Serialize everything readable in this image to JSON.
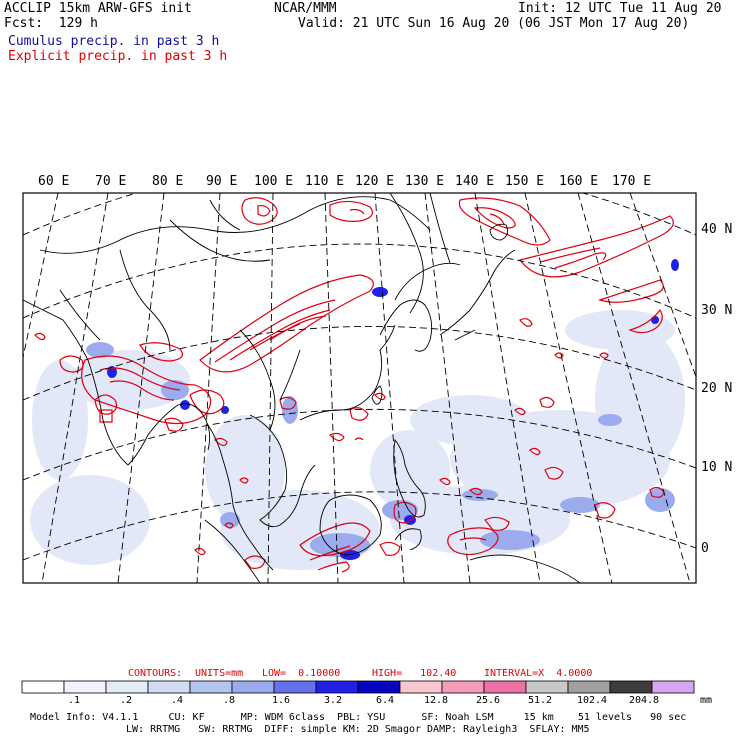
{
  "header": {
    "model": "ACCLIP 15km ARW-GFS init",
    "center": "NCAR/MMM",
    "init": "Init: 12 UTC Tue 11 Aug 20",
    "fcst": "Fcst:  129 h",
    "valid": "Valid: 21 UTC Sun 16 Aug 20 (06 JST Mon 17 Aug 20)",
    "legend_cumulus": "Cumulus precip. in past 3 h",
    "legend_explicit": "Explicit precip. in past 3 h"
  },
  "colors": {
    "cumulus_text": "#1010a0",
    "explicit_text": "#e00000",
    "contour": "#e00010"
  },
  "map": {
    "lon_labels": [
      "60 E",
      "70 E",
      "80 E",
      "90 E",
      "100 E",
      "110 E",
      "120 E",
      "130 E",
      "140 E",
      "150 E",
      "160 E",
      "170 E"
    ],
    "lat_labels": [
      "40 N",
      "30 N",
      "20 N",
      "10 N",
      "0"
    ]
  },
  "contours": {
    "label": "CONTOURS:",
    "units": "UNITS=mm",
    "low": "LOW=  0.10000",
    "high": "HIGH=   102.40",
    "interval": "INTERVAL=X  4.0000"
  },
  "colorbar": {
    "labels": [
      ".1",
      ".2",
      ".4",
      ".8",
      "1.6",
      "3.2",
      "6.4",
      "12.8",
      "25.6",
      "51.2",
      "102.4",
      "204.8"
    ],
    "unit": "mm",
    "colors": [
      "#ffffff",
      "#f2f4fb",
      "#e6ebf8",
      "#d2dcf3",
      "#b4c4ee",
      "#9cabee",
      "#6570ec",
      "#2020e6",
      "#0505c0",
      "#f9c7d0",
      "#f29cb8",
      "#ee70a4",
      "#c8c8c8",
      "#a0a0a0",
      "#3c3c3c",
      "#d7a6f0"
    ]
  },
  "footer": {
    "line1": "Model Info: V4.1.1     CU: KF      MP: WDM 6class  PBL: YSU      SF: Noah LSM     15 km    51 levels   90 sec",
    "line2": "LW: RRTMG   SW: RRTMG  DIFF: simple KM: 2D Smagor DAMP: Rayleigh3  SFLAY: MM5"
  }
}
